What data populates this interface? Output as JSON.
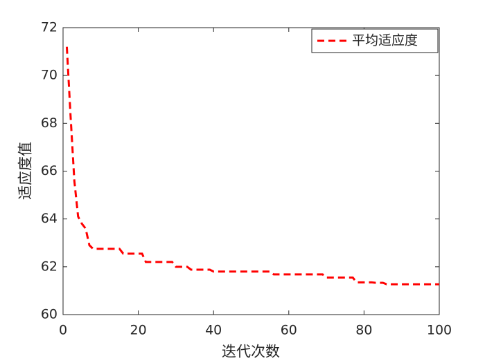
{
  "chart_data": {
    "type": "line",
    "xlabel": "迭代次数",
    "ylabel": "适应度值",
    "x": [
      1,
      2,
      3,
      4,
      5,
      6,
      7,
      8,
      15,
      16,
      21,
      22,
      29,
      30,
      33,
      34,
      39,
      40,
      55,
      56,
      69,
      70,
      77,
      78,
      82,
      83,
      85,
      86,
      100
    ],
    "series": [
      {
        "name": "平均适应度",
        "color": "#ff0000",
        "dashed": true,
        "values": [
          71.2,
          68.3,
          65.6,
          64.1,
          63.8,
          63.6,
          62.9,
          62.75,
          62.75,
          62.55,
          62.55,
          62.2,
          62.2,
          62.0,
          62.0,
          61.88,
          61.88,
          61.8,
          61.8,
          61.68,
          61.68,
          61.55,
          61.55,
          61.35,
          61.35,
          61.33,
          61.33,
          61.27,
          61.27
        ]
      }
    ],
    "xlim": [
      0,
      100
    ],
    "xticks": [
      0,
      20,
      40,
      60,
      80,
      100
    ],
    "ylim": [
      60,
      72
    ],
    "yticks": [
      60,
      62,
      64,
      66,
      68,
      70,
      72
    ],
    "legend": "upper right"
  }
}
